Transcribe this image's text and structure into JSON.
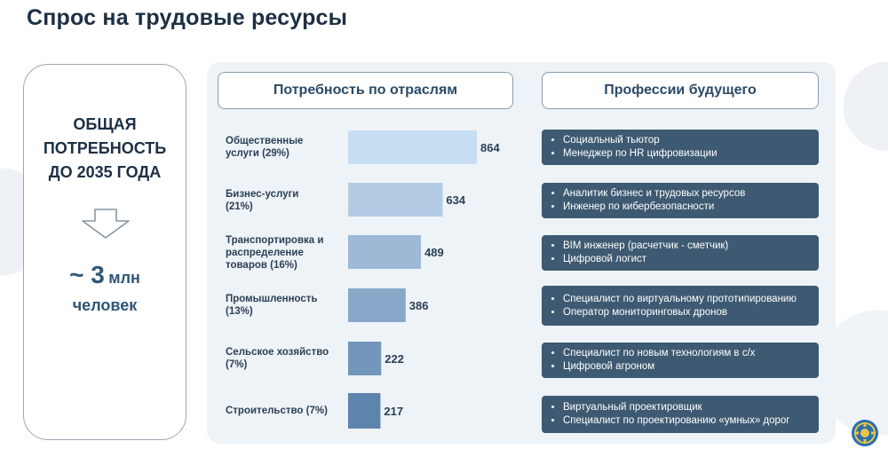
{
  "page": {
    "title": "Спрос на трудовые ресурсы"
  },
  "left_card": {
    "total_label": "ОБЩАЯ\nПОТРЕБНОСТЬ\nДО 2035 ГОДА",
    "value_prefix": "~ 3",
    "value_unit": "млн",
    "people_label": "человек"
  },
  "headers": {
    "industries": "Потребность по отраслям",
    "professions": "Профессии будущего"
  },
  "colors": {
    "bar_light": "#c7ddf1",
    "bar_dark": "#5d84ad",
    "prof_box": "#3e5a72"
  },
  "chart_data": {
    "type": "bar",
    "orientation": "horizontal",
    "categories": [
      "Общественные услуги (29%)",
      "Бизнес-услуги (21%)",
      "Транспортировка и распределение товаров (16%)",
      "Промышленность (13%)",
      "Сельское хозяйство (7%)",
      "Строительство (7%)"
    ],
    "values": [
      864,
      634,
      489,
      386,
      222,
      217
    ],
    "title": "Потребность по отраслям"
  },
  "rows": [
    {
      "label": "Общественные\nуслуги (29%)",
      "value": "864",
      "professions": [
        "Социальный тьютор",
        "Менеджер по HR цифровизации"
      ]
    },
    {
      "label": "Бизнес-услуги\n(21%)",
      "value": "634",
      "professions": [
        "Аналитик бизнес и трудовых ресурсов",
        "Инженер по кибербезопасности"
      ]
    },
    {
      "label": "Транспортировка и\nраспределение\nтоваров (16%)",
      "value": "489",
      "professions": [
        "BIM инженер (расчетчик - сметчик)",
        "Цифровой логист"
      ]
    },
    {
      "label": "Промышленность\n(13%)",
      "value": "386",
      "professions": [
        "Специалист по виртуальному прототипированию",
        "Оператор мониторинговых дронов"
      ]
    },
    {
      "label": "Сельское хозяйство\n(7%)",
      "value": "222",
      "professions": [
        "Специалист по новым технологиям в с/х",
        "Цифровой агроном"
      ]
    },
    {
      "label": "Строительство (7%)",
      "value": "217",
      "professions": [
        "Виртуальный проектировщик",
        "Специалист по проектированию «умных» дорог"
      ]
    }
  ],
  "icons": {
    "arrow": "down-arrow-icon",
    "emblem": "state-emblem-icon"
  }
}
